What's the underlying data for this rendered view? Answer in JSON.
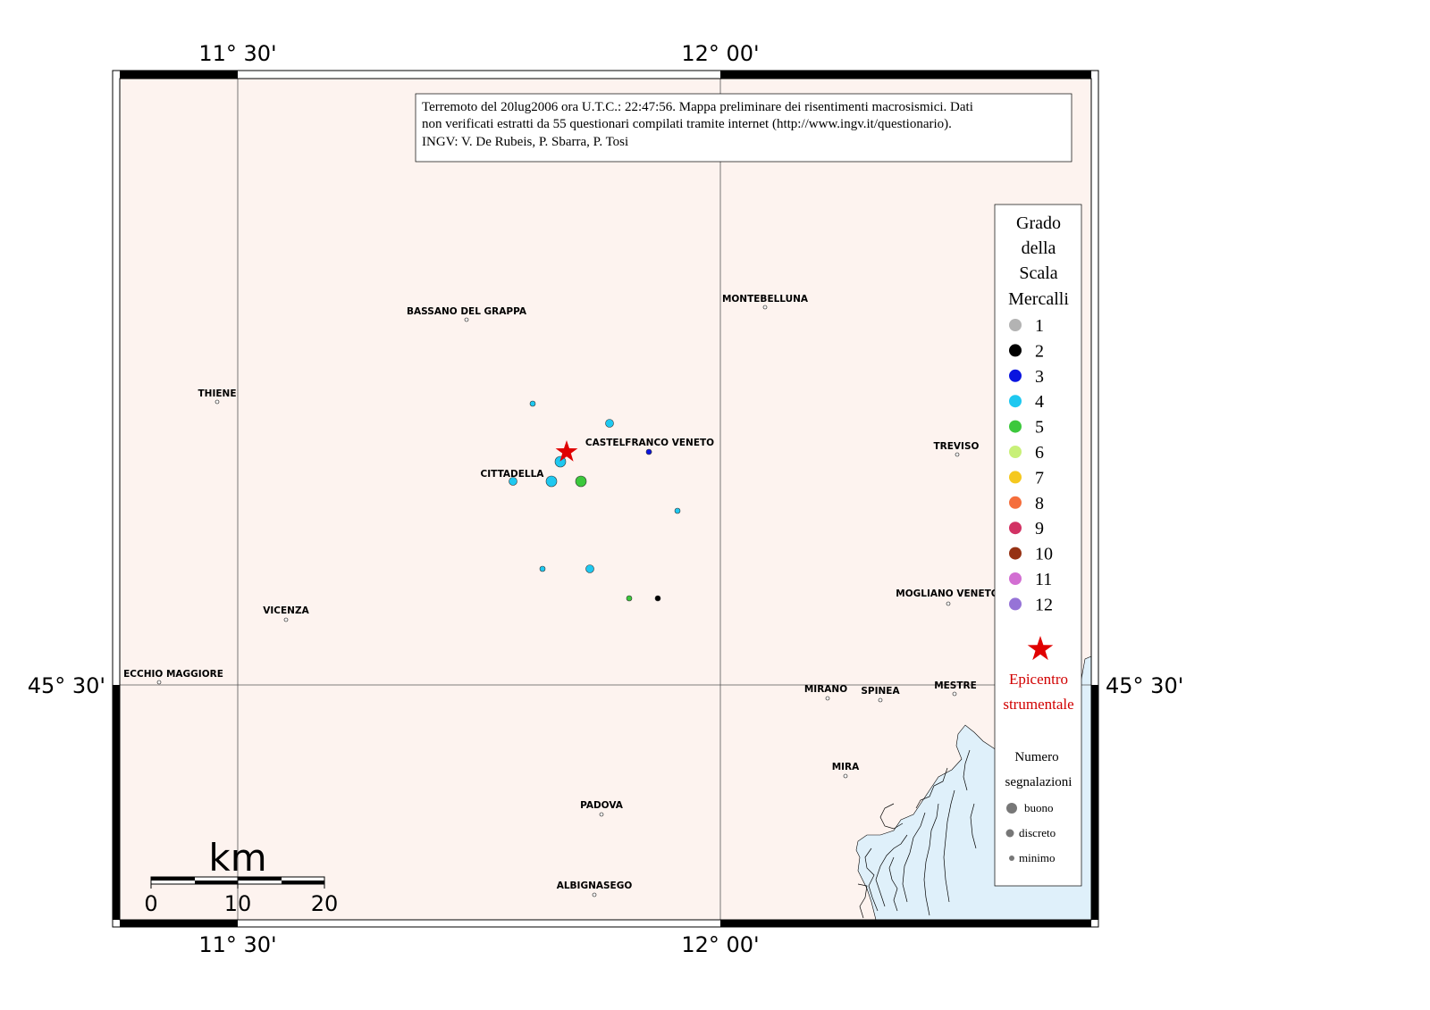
{
  "axes": {
    "top_left": "11° 30'",
    "top_right": "12° 00'",
    "bottom_left": "11° 30'",
    "bottom_right": "12° 00'",
    "left": "45° 30'",
    "right": "45° 30'"
  },
  "info_box": {
    "line1": "Terremoto del 20lug2006 ora U.T.C.: 22:47:56.  Mappa preliminare dei risentimenti macrosismici.  Dati",
    "line2": "non verificati estratti da 55 questionari compilati tramite internet (http://www.ingv.it/questionario).",
    "line3": "INGV: V.  De Rubeis, P.  Sbarra, P.  Tosi"
  },
  "cities": [
    {
      "name": "BASSANO DEL GRAPPA"
    },
    {
      "name": "MONTEBELLUNA"
    },
    {
      "name": "THIENE"
    },
    {
      "name": "CASTELFRANCO VENETO"
    },
    {
      "name": "TREVISO"
    },
    {
      "name": "CITTADELLA"
    },
    {
      "name": "VICENZA"
    },
    {
      "name": "MOGLIANO VENETO"
    },
    {
      "name": "ECCHIO MAGGIORE"
    },
    {
      "name": "MIRANO"
    },
    {
      "name": "SPINEA"
    },
    {
      "name": "MESTRE"
    },
    {
      "name": "MIRA"
    },
    {
      "name": "PADOVA"
    },
    {
      "name": "ALBIGNASEGO"
    }
  ],
  "legend": {
    "title": [
      "Grado",
      "della",
      "Scala",
      "Mercalli"
    ],
    "grades": [
      {
        "label": "1",
        "color": "#b3b3b3"
      },
      {
        "label": "2",
        "color": "#000000"
      },
      {
        "label": "3",
        "color": "#0a14e0"
      },
      {
        "label": "4",
        "color": "#1ec8f0"
      },
      {
        "label": "5",
        "color": "#3cc83c"
      },
      {
        "label": "6",
        "color": "#c8f078"
      },
      {
        "label": "7",
        "color": "#f5c81e"
      },
      {
        "label": "8",
        "color": "#f56e3c"
      },
      {
        "label": "9",
        "color": "#d23264"
      },
      {
        "label": "10",
        "color": "#963214"
      },
      {
        "label": "11",
        "color": "#d26ed2"
      },
      {
        "label": "12",
        "color": "#9673d7"
      }
    ],
    "epicentro": [
      "Epicentro",
      "strumentale"
    ],
    "numero": [
      "Numero",
      "segnalazioni"
    ],
    "sizes": [
      "buono",
      "discreto",
      "minimo"
    ]
  },
  "scale_bar": {
    "unit": "km",
    "ticks": [
      "0",
      "10",
      "20"
    ]
  },
  "observations": [
    {
      "grade": 4,
      "quality": "minimo"
    },
    {
      "grade": 4,
      "quality": "discreto"
    },
    {
      "grade": 3,
      "quality": "minimo"
    },
    {
      "grade": 4,
      "quality": "buono"
    },
    {
      "grade": 4,
      "quality": "discreto"
    },
    {
      "grade": 4,
      "quality": "buono"
    },
    {
      "grade": 5,
      "quality": "buono"
    },
    {
      "grade": 4,
      "quality": "minimo"
    },
    {
      "grade": 4,
      "quality": "minimo"
    },
    {
      "grade": 4,
      "quality": "discreto"
    },
    {
      "grade": 5,
      "quality": "minimo"
    },
    {
      "grade": 2,
      "quality": "minimo"
    }
  ],
  "colors": {
    "land": "#fdf3ef",
    "sea": "#dff0fa",
    "epicenter": "#e00000"
  }
}
